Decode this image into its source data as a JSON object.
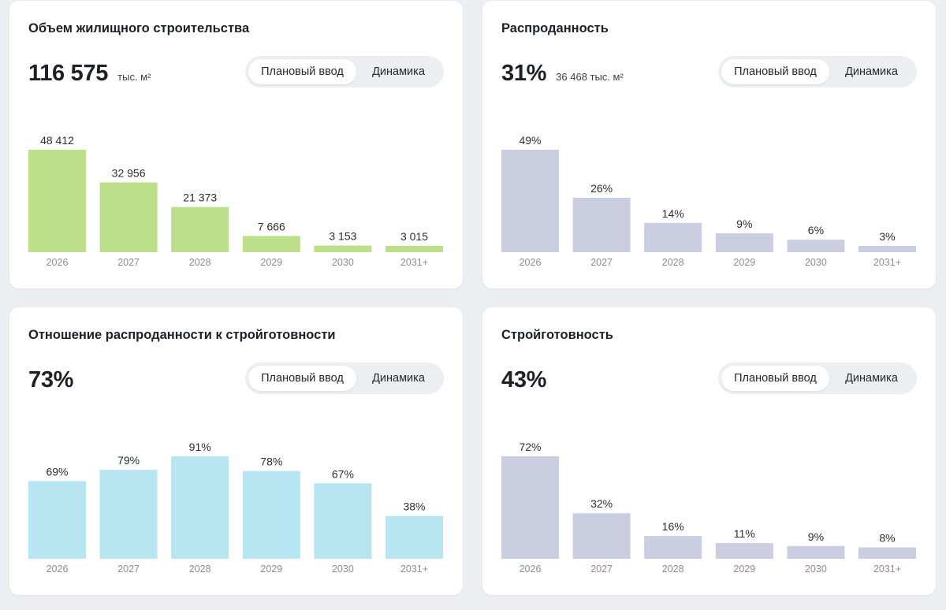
{
  "colors": {
    "green_bar": "#bcdf8c",
    "lavender_bar": "#cbcde0",
    "blue_bar": "#b8e5f2",
    "label_text": "#2a2d33",
    "tick_text": "#8a8d94"
  },
  "toggle": {
    "planned_label": "Плановый ввод",
    "dynamics_label": "Динамика"
  },
  "cards": [
    {
      "title": "Объем жилищного строительства",
      "metric": "116 575",
      "metric_sub": "тыс. м²"
    },
    {
      "title": "Распроданность",
      "metric": "31%",
      "metric_sub": "36 468 тыс. м²"
    },
    {
      "title": "Отношение распроданности к стройготовности",
      "metric": "73%",
      "metric_sub": ""
    },
    {
      "title": "Стройготовность",
      "metric": "43%",
      "metric_sub": ""
    }
  ],
  "chart_data": [
    {
      "type": "bar",
      "title": "Объем жилищного строительства",
      "categories": [
        "2026",
        "2027",
        "2028",
        "2029",
        "2030",
        "2031+"
      ],
      "values": [
        48412,
        32956,
        21373,
        7666,
        3153,
        3015
      ],
      "labels": [
        "48 412",
        "32 956",
        "21 373",
        "7 666",
        "3 153",
        "3 015"
      ],
      "ylim": [
        0,
        48412
      ],
      "color": "#bcdf8c"
    },
    {
      "type": "bar",
      "title": "Распроданность",
      "categories": [
        "2026",
        "2027",
        "2028",
        "2029",
        "2030",
        "2031+"
      ],
      "values": [
        49,
        26,
        14,
        9,
        6,
        3
      ],
      "labels": [
        "49%",
        "26%",
        "14%",
        "9%",
        "6%",
        "3%"
      ],
      "ylim": [
        0,
        49
      ],
      "color": "#cbcde0"
    },
    {
      "type": "bar",
      "title": "Отношение распроданности к стройготовности",
      "categories": [
        "2026",
        "2027",
        "2028",
        "2029",
        "2030",
        "2031+"
      ],
      "values": [
        69,
        79,
        91,
        78,
        67,
        38
      ],
      "labels": [
        "69%",
        "79%",
        "91%",
        "78%",
        "67%",
        "38%"
      ],
      "ylim": [
        0,
        91
      ],
      "color": "#b8e5f2"
    },
    {
      "type": "bar",
      "title": "Стройготовность",
      "categories": [
        "2026",
        "2027",
        "2028",
        "2029",
        "2030",
        "2031+"
      ],
      "values": [
        72,
        32,
        16,
        11,
        9,
        8
      ],
      "labels": [
        "72%",
        "32%",
        "16%",
        "11%",
        "9%",
        "8%"
      ],
      "ylim": [
        0,
        72
      ],
      "color": "#cbcde0"
    }
  ]
}
